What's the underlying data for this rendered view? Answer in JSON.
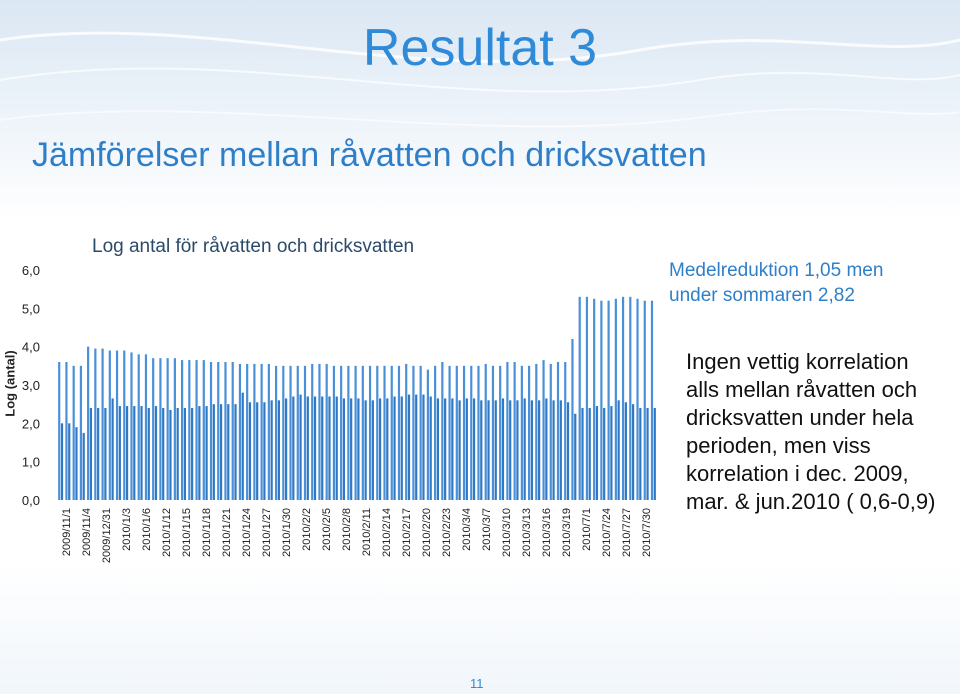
{
  "slide": {
    "title": "Resultat 3",
    "subtitle": "Jämförelser mellan råvatten och dricksvatten",
    "page_number": "11"
  },
  "annotations": {
    "medel_line1": "Medelreduktion 1,05 men",
    "medel_line2": "under sommaren 2,82",
    "note": "Ingen vettig korrelation alls mellan råvatten och dricksvatten under hela perioden, men viss korrelation i dec. 2009, mar. & jun.2010 ( 0,6-0,9)"
  },
  "colors": {
    "accent": "#2f8ad8",
    "bar": "#4a90d9",
    "bar_dark": "#2f78c4"
  },
  "chart_data": {
    "type": "bar",
    "title": "Log antal för råvatten och dricksvatten",
    "ylabel": "Log (antal)",
    "xlabel": "",
    "ylim": [
      0,
      6
    ],
    "y_ticks": [
      "0,0",
      "1,0",
      "2,0",
      "3,0",
      "4,0",
      "5,0",
      "6,0"
    ],
    "x_tick_labels": [
      "2009/11/1",
      "2009/11/4",
      "2009/12/31",
      "2010/1/3",
      "2010/1/6",
      "2010/1/12",
      "2010/1/15",
      "2010/1/18",
      "2010/1/21",
      "2010/1/24",
      "2010/1/27",
      "2010/1/30",
      "2010/2/2",
      "2010/2/5",
      "2010/2/8",
      "2010/2/11",
      "2010/2/14",
      "2010/2/17",
      "2010/2/20",
      "2010/2/23",
      "2010/3/4",
      "2010/3/7",
      "2010/3/10",
      "2010/3/13",
      "2010/3/16",
      "2010/3/19",
      "2010/7/1",
      "2010/7/24",
      "2010/7/27",
      "2010/7/30"
    ],
    "series": [
      {
        "values": [
          3.6,
          3.6,
          3.5,
          3.5,
          4.0,
          3.95,
          3.95,
          3.9,
          3.9,
          3.9,
          3.85,
          3.8,
          3.8,
          3.7,
          3.7,
          3.7,
          3.7,
          3.65,
          3.65,
          3.65,
          3.65,
          3.6,
          3.6,
          3.6,
          3.6,
          3.55,
          3.55,
          3.55,
          3.55,
          3.55,
          3.5,
          3.5,
          3.5,
          3.5,
          3.5,
          3.55,
          3.55,
          3.55,
          3.5,
          3.5,
          3.5,
          3.5,
          3.5,
          3.5,
          3.5,
          3.5,
          3.5,
          3.5,
          3.55,
          3.5,
          3.5,
          3.4,
          3.5,
          3.6,
          3.5,
          3.5,
          3.5,
          3.5,
          3.5,
          3.55,
          3.5,
          3.5,
          3.6,
          3.6,
          3.5,
          3.5,
          3.55,
          3.65,
          3.55,
          3.6,
          3.6,
          4.2,
          5.3,
          5.3,
          5.25,
          5.2,
          5.2,
          5.25,
          5.3,
          5.3,
          5.25,
          5.2,
          5.2
        ]
      },
      {
        "values": [
          2.0,
          2.0,
          1.9,
          1.75,
          2.4,
          2.4,
          2.4,
          2.65,
          2.45,
          2.45,
          2.45,
          2.45,
          2.4,
          2.45,
          2.4,
          2.35,
          2.4,
          2.4,
          2.4,
          2.45,
          2.45,
          2.5,
          2.5,
          2.5,
          2.5,
          2.8,
          2.55,
          2.55,
          2.55,
          2.6,
          2.6,
          2.65,
          2.7,
          2.75,
          2.7,
          2.7,
          2.7,
          2.7,
          2.7,
          2.65,
          2.65,
          2.65,
          2.6,
          2.6,
          2.65,
          2.65,
          2.7,
          2.7,
          2.75,
          2.75,
          2.75,
          2.7,
          2.65,
          2.65,
          2.65,
          2.6,
          2.65,
          2.65,
          2.6,
          2.6,
          2.6,
          2.65,
          2.6,
          2.6,
          2.65,
          2.6,
          2.6,
          2.65,
          2.6,
          2.6,
          2.55,
          2.25,
          2.4,
          2.4,
          2.45,
          2.4,
          2.45,
          2.6,
          2.55,
          2.5,
          2.4,
          2.4,
          2.4
        ]
      }
    ]
  }
}
